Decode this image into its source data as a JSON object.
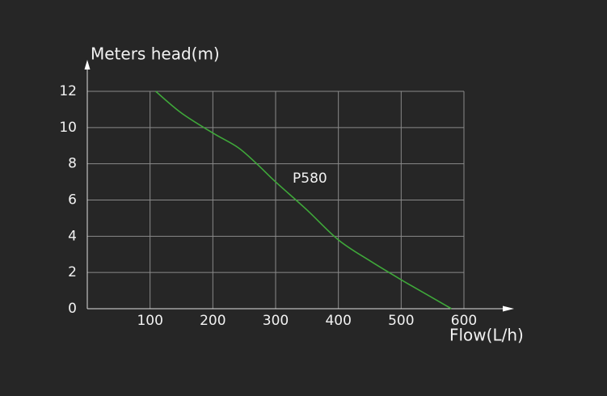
{
  "chart_data": {
    "type": "line",
    "y_axis_label": "Meters head(m)",
    "x_axis_label": "Flow(L/h)",
    "annotation": "P580",
    "x": [
      109,
      150,
      200,
      240,
      270,
      300,
      350,
      400,
      450,
      500,
      540,
      580
    ],
    "series": [
      {
        "name": "P580",
        "color": "#3fa83a",
        "values": [
          12,
          10.8,
          9.7,
          8.9,
          8,
          7,
          5.45,
          3.8,
          2.65,
          1.6,
          0.8,
          0
        ]
      }
    ],
    "xlim": [
      0,
      600
    ],
    "ylim": [
      0,
      12
    ],
    "xticks": [
      100,
      200,
      300,
      400,
      500,
      600
    ],
    "yticks": [
      0,
      2,
      4,
      6,
      8,
      10,
      12
    ],
    "grid": true
  }
}
